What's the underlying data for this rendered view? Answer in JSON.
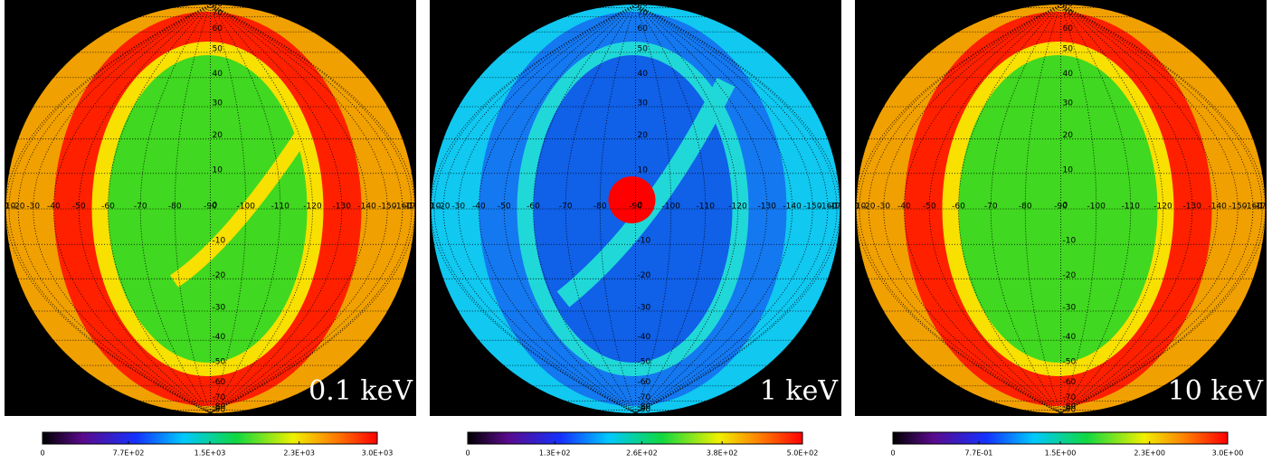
{
  "graticule": {
    "lat_ticks": [
      80,
      70,
      60,
      50,
      40,
      30,
      20,
      10,
      0,
      -10,
      -20,
      -30,
      -40,
      -50,
      -60,
      -70,
      -80,
      -90
    ],
    "lon_ticks": [
      0,
      -10,
      -20,
      -30,
      -40,
      -50,
      -60,
      -70,
      -80,
      -90,
      -100,
      -110,
      -120,
      -130,
      -140,
      -150,
      -160,
      -170,
      -180
    ]
  },
  "chart_data": [
    {
      "type": "map",
      "label": "0.1 keV",
      "clim": [
        0,
        3000
      ],
      "cticks": [
        0,
        {
          "value": 770,
          "label": "7.7E+02"
        },
        {
          "value": 1500,
          "label": "1.5E+03"
        },
        {
          "value": 2300,
          "label": "2.3E+03"
        },
        {
          "value": 3000,
          "label": "3.0E+03"
        }
      ]
    },
    {
      "type": "map",
      "label": "1 keV",
      "clim": [
        0,
        500
      ],
      "cticks": [
        0,
        {
          "value": 130,
          "label": "1.3E+02"
        },
        {
          "value": 260,
          "label": "2.6E+02"
        },
        {
          "value": 380,
          "label": "3.8E+02"
        },
        {
          "value": 500,
          "label": "5.0E+02"
        }
      ]
    },
    {
      "type": "map",
      "label": "10 keV",
      "clim": [
        0,
        3
      ],
      "cticks": [
        0,
        {
          "value": 0.77,
          "label": "7.7E-01"
        },
        {
          "value": 1.5,
          "label": "1.5E+00"
        },
        {
          "value": 2.3,
          "label": "2.3E+00"
        },
        {
          "value": 3,
          "label": "3.0E+00"
        }
      ]
    }
  ]
}
